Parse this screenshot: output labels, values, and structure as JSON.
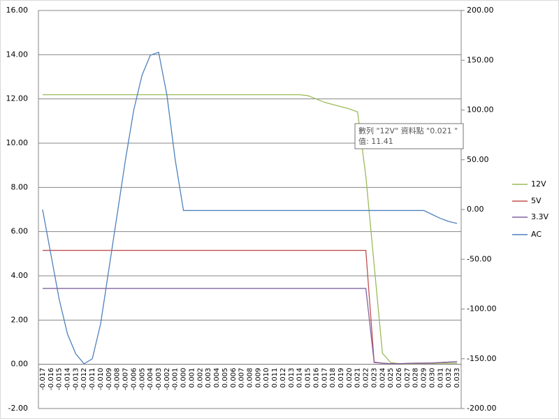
{
  "chart_data": {
    "type": "line",
    "categories": [
      "-0.017",
      "-0.016",
      "-0.015",
      "-0.014",
      "-0.013",
      "-0.012",
      "-0.011",
      "-0.010",
      "-0.009",
      "-0.008",
      "-0.007",
      "-0.006",
      "-0.005",
      "-0.004",
      "-0.003",
      "-0.002",
      "-0.001",
      "0.000",
      "0.001",
      "0.002",
      "0.003",
      "0.004",
      "0.005",
      "0.006",
      "0.007",
      "0.008",
      "0.009",
      "0.010",
      "0.011",
      "0.012",
      "0.013",
      "0.014",
      "0.015",
      "0.016",
      "0.017",
      "0.018",
      "0.019",
      "0.020",
      "0.021",
      "0.022",
      "0.023",
      "0.024",
      "0.025",
      "0.026",
      "0.027",
      "0.028",
      "0.029",
      "0.030",
      "0.031",
      "0.032",
      "0.033"
    ],
    "series": [
      {
        "name": "12V",
        "color": "#9bbb59",
        "values": [
          12.19,
          12.19,
          12.19,
          12.19,
          12.19,
          12.19,
          12.19,
          12.19,
          12.19,
          12.19,
          12.19,
          12.19,
          12.19,
          12.19,
          12.19,
          12.19,
          12.19,
          12.19,
          12.19,
          12.19,
          12.19,
          12.19,
          12.19,
          12.19,
          12.19,
          12.19,
          12.19,
          12.19,
          12.19,
          12.19,
          12.19,
          12.19,
          12.15,
          12.0,
          11.85,
          11.75,
          11.65,
          11.55,
          11.41,
          8.5,
          4.5,
          0.5,
          0.08,
          0.03,
          0.03,
          0.03,
          0.04,
          0.04,
          0.05,
          0.05,
          0.05
        ]
      },
      {
        "name": "5V",
        "color": "#c0504d",
        "values": [
          5.15,
          5.15,
          5.15,
          5.15,
          5.15,
          5.15,
          5.15,
          5.15,
          5.15,
          5.15,
          5.15,
          5.15,
          5.15,
          5.15,
          5.15,
          5.15,
          5.15,
          5.15,
          5.15,
          5.15,
          5.15,
          5.15,
          5.15,
          5.15,
          5.15,
          5.15,
          5.15,
          5.15,
          5.15,
          5.15,
          5.15,
          5.15,
          5.15,
          5.15,
          5.15,
          5.15,
          5.15,
          5.15,
          5.15,
          5.15,
          0.1,
          0.05,
          0.03,
          0.03,
          0.04,
          0.05,
          0.05,
          0.06,
          0.08,
          0.1,
          0.12
        ]
      },
      {
        "name": "3.3V",
        "color": "#8064a2",
        "values": [
          3.43,
          3.43,
          3.43,
          3.43,
          3.43,
          3.43,
          3.43,
          3.43,
          3.43,
          3.43,
          3.43,
          3.43,
          3.43,
          3.43,
          3.43,
          3.43,
          3.43,
          3.43,
          3.43,
          3.43,
          3.43,
          3.43,
          3.43,
          3.43,
          3.43,
          3.43,
          3.43,
          3.43,
          3.43,
          3.43,
          3.43,
          3.43,
          3.43,
          3.43,
          3.43,
          3.43,
          3.43,
          3.43,
          3.43,
          3.43,
          0.08,
          0.05,
          0.03,
          0.03,
          0.04,
          0.05,
          0.05,
          0.06,
          0.08,
          0.1,
          0.12
        ]
      },
      {
        "name": "AC",
        "color": "#4f81bd",
        "axis": "y2",
        "values": [
          0,
          -45,
          -90,
          -125,
          -145,
          -155,
          -150,
          -115,
          -60,
          -5,
          50,
          100,
          135,
          155,
          158,
          115,
          50,
          -1,
          -1,
          -1,
          -1,
          -1,
          -1,
          -1,
          -1,
          -1,
          -1,
          -1,
          -1,
          -1,
          -1,
          -1,
          -1,
          -1,
          -1,
          -1,
          -1,
          -1,
          -1,
          -1,
          -1,
          -1,
          -1,
          -1,
          -1,
          -1,
          -1,
          -5,
          -9,
          -12,
          -14
        ]
      }
    ],
    "ylim": [
      -2,
      16
    ],
    "yticks": [
      {
        "value": -2,
        "label": "-2.00"
      },
      {
        "value": 0,
        "label": "0.00"
      },
      {
        "value": 2,
        "label": "2.00"
      },
      {
        "value": 4,
        "label": "4.00"
      },
      {
        "value": 6,
        "label": "6.00"
      },
      {
        "value": 8,
        "label": "8.00"
      },
      {
        "value": 10,
        "label": "10.00"
      },
      {
        "value": 12,
        "label": "12.00"
      },
      {
        "value": 14,
        "label": "14.00"
      },
      {
        "value": 16,
        "label": "16.00"
      }
    ],
    "y2lim": [
      -200,
      200
    ],
    "y2ticks": [
      {
        "value": -200,
        "label": "-200.00"
      },
      {
        "value": -150,
        "label": "-150.00"
      },
      {
        "value": -100,
        "label": "-100.00"
      },
      {
        "value": -50,
        "label": "-50.00"
      },
      {
        "value": 0,
        "label": "0.00"
      },
      {
        "value": 50,
        "label": "50.00"
      },
      {
        "value": 100,
        "label": "100.00"
      },
      {
        "value": 150,
        "label": "150.00"
      },
      {
        "value": 200,
        "label": "200.00"
      }
    ],
    "grid": true,
    "legend": "right",
    "tooltip": [
      "數列 \"12V\" 資料點 \"0.021 \"",
      "值: 11.41"
    ]
  }
}
